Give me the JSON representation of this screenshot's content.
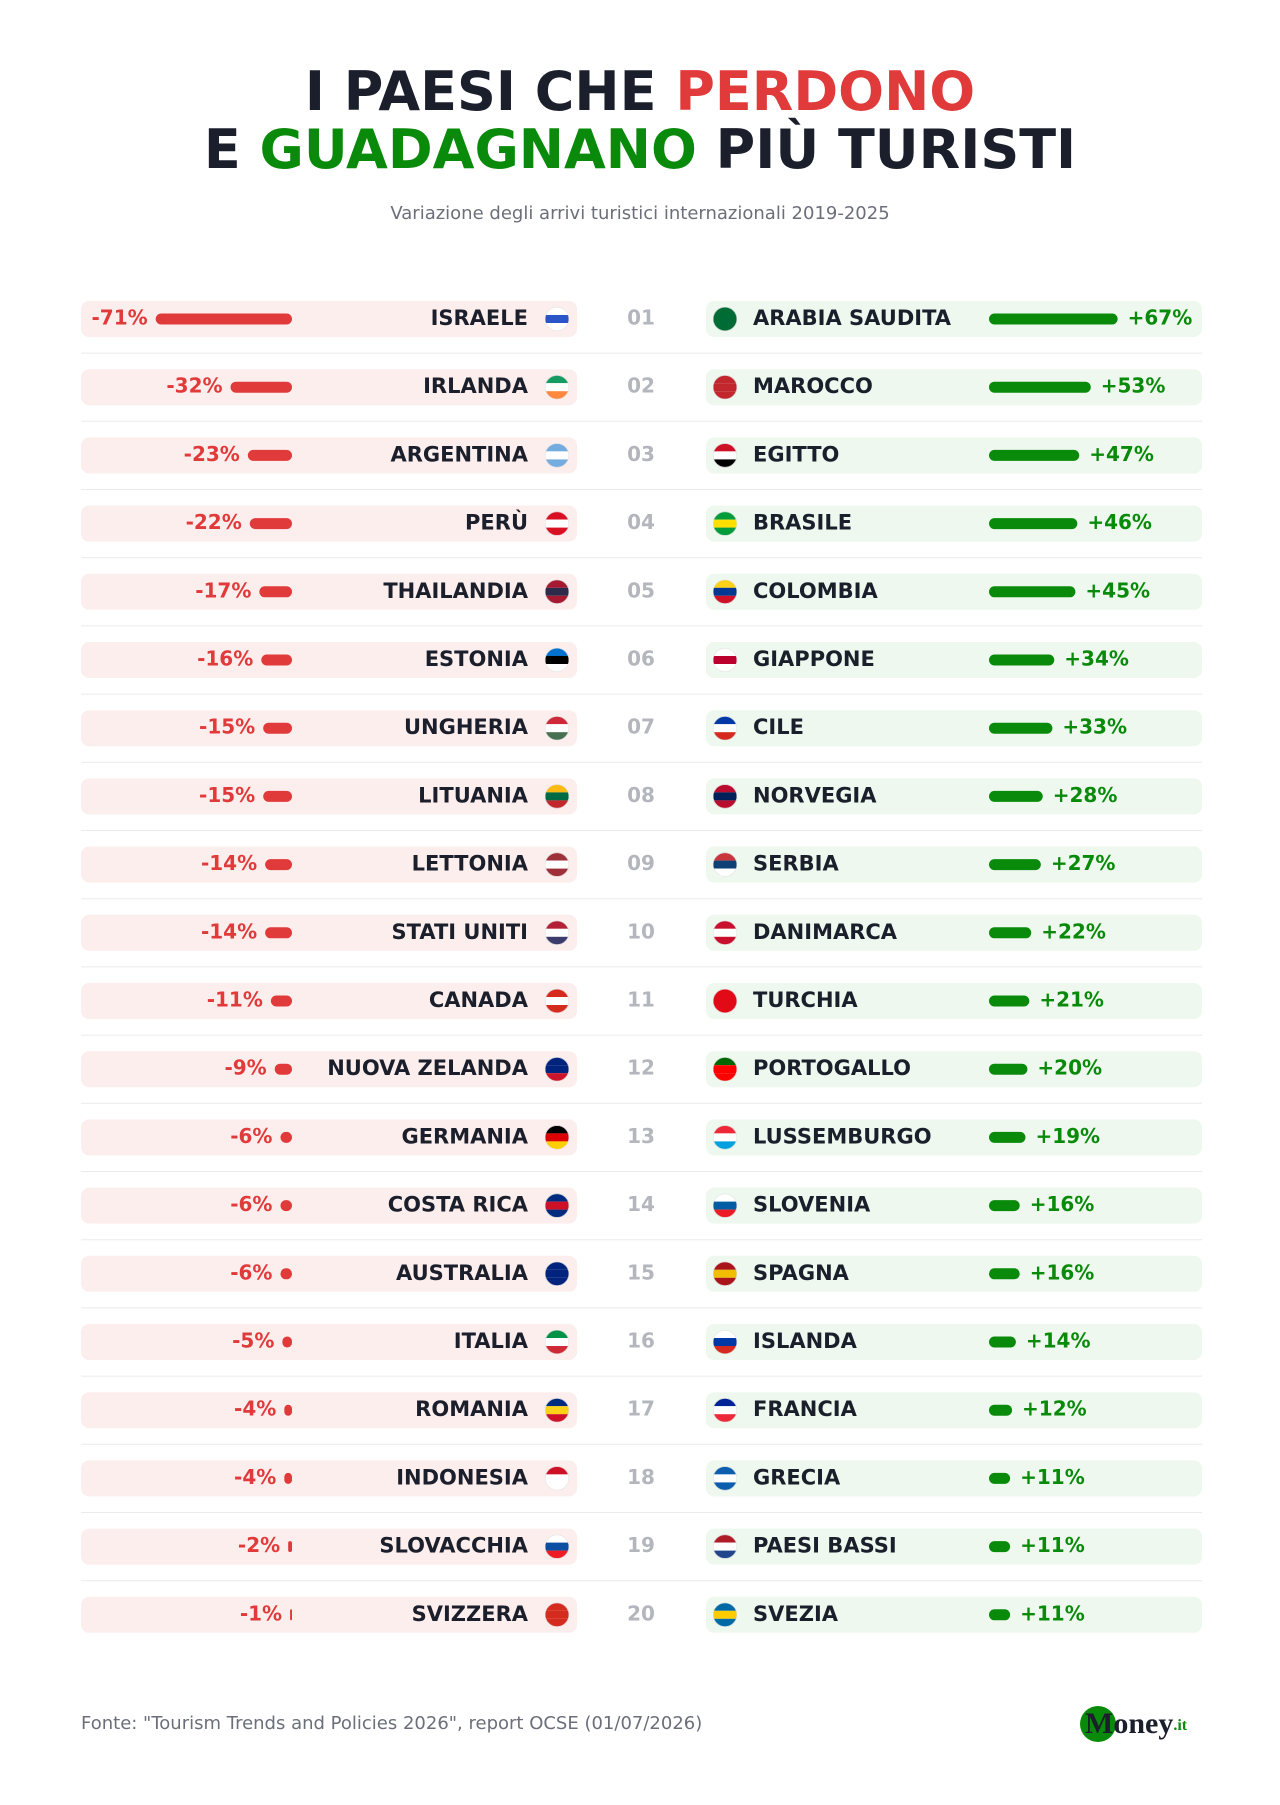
{
  "chart_data": {
    "type": "diverging-bar",
    "title_lines": [
      [
        {
          "text": "I PAESI CHE ",
          "color": "#1b1f2b"
        },
        {
          "text": "PERDONO",
          "color": "#e03a3a"
        }
      ],
      [
        {
          "text": "E ",
          "color": "#1b1f2b"
        },
        {
          "text": "GUADAGNANO",
          "color": "#0a8a0a"
        },
        {
          "text": " PIÙ TURISTI",
          "color": "#1b1f2b"
        }
      ]
    ],
    "subtitle": "Variazione degli arrivi turistici internazionali 2019-2025",
    "ranks": [
      "01",
      "02",
      "03",
      "04",
      "05",
      "06",
      "07",
      "08",
      "09",
      "10",
      "11",
      "12",
      "13",
      "14",
      "15",
      "16",
      "17",
      "18",
      "19",
      "20"
    ],
    "losers": {
      "color": "#e03a3a",
      "categories": [
        "ISRAELE",
        "IRLANDA",
        "ARGENTINA",
        "PERÙ",
        "THAILANDIA",
        "ESTONIA",
        "UNGHERIA",
        "LITUANIA",
        "LETTONIA",
        "STATI UNITI",
        "CANADA",
        "NUOVA ZELANDA",
        "GERMANIA",
        "COSTA RICA",
        "AUSTRALIA",
        "ITALIA",
        "ROMANIA",
        "INDONESIA",
        "SLOVACCHIA",
        "SVIZZERA"
      ],
      "values": [
        -71,
        -32,
        -23,
        -22,
        -17,
        -16,
        -15,
        -15,
        -14,
        -14,
        -11,
        -9,
        -6,
        -6,
        -6,
        -5,
        -4,
        -4,
        -2,
        -1
      ],
      "value_labels": [
        "-71%",
        "-32%",
        "-23%",
        "-22%",
        "-17%",
        "-16%",
        "-15%",
        "-15%",
        "-14%",
        "-14%",
        "-11%",
        "-9%",
        "-6%",
        "-6%",
        "-6%",
        "-5%",
        "-4%",
        "-4%",
        "-2%",
        "-1%"
      ]
    },
    "gainers": {
      "color": "#0a8a0a",
      "categories": [
        "ARABIA SAUDITA",
        "MAROCCO",
        "EGITTO",
        "BRASILE",
        "COLOMBIA",
        "GIAPPONE",
        "CILE",
        "NORVEGIA",
        "SERBIA",
        "DANIMARCA",
        "TURCHIA",
        "PORTOGALLO",
        "LUSSEMBURGO",
        "SLOVENIA",
        "SPAGNA",
        "ISLANDA",
        "FRANCIA",
        "GRECIA",
        "PAESI BASSI",
        "SVEZIA"
      ],
      "values": [
        67,
        53,
        47,
        46,
        45,
        34,
        33,
        28,
        27,
        22,
        21,
        20,
        19,
        16,
        16,
        14,
        12,
        11,
        11,
        11
      ],
      "value_labels": [
        "+67%",
        "+53%",
        "+47%",
        "+46%",
        "+45%",
        "+34%",
        "+33%",
        "+28%",
        "+27%",
        "+22%",
        "+21%",
        "+20%",
        "+19%",
        "+16%",
        "+16%",
        "+14%",
        "+12%",
        "+11%",
        "+11%",
        "+11%"
      ]
    },
    "source": "Fonte: \"Tourism Trends and Policies 2026\", report OCSE (01/07/2026)",
    "logo": {
      "main": "Money",
      "suffix": ".it"
    }
  }
}
